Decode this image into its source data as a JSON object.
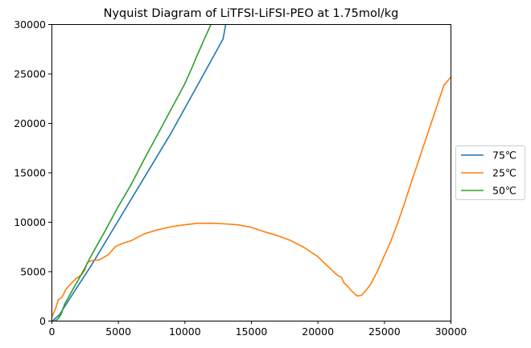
{
  "chart_data": {
    "type": "line",
    "title": "Nyquist Diagram of LiTFSI-LiFSI-PEO at 1.75mol/kg",
    "xlabel": "",
    "ylabel": "",
    "xlim": [
      0,
      30000
    ],
    "ylim": [
      0,
      30000
    ],
    "x_ticks": [
      0,
      5000,
      10000,
      15000,
      20000,
      25000,
      30000
    ],
    "y_ticks": [
      0,
      5000,
      10000,
      15000,
      20000,
      25000,
      30000
    ],
    "grid": false,
    "legend_position": "right, outside plot area",
    "series": [
      {
        "name": "75℃",
        "color": "#1f77b4",
        "points": [
          [
            100,
            0
          ],
          [
            600,
            600
          ],
          [
            1500,
            2500
          ],
          [
            3000,
            5600
          ],
          [
            6000,
            12300
          ],
          [
            9000,
            19000
          ],
          [
            12000,
            26300
          ],
          [
            12900,
            28500
          ],
          [
            13100,
            30000
          ]
        ]
      },
      {
        "name": "25℃",
        "color": "#ff7f0e",
        "points": [
          [
            0,
            300
          ],
          [
            300,
            1200
          ],
          [
            500,
            2100
          ],
          [
            800,
            2400
          ],
          [
            1100,
            3200
          ],
          [
            1500,
            3800
          ],
          [
            1800,
            4200
          ],
          [
            2300,
            4700
          ],
          [
            2500,
            5100
          ],
          [
            2700,
            5900
          ],
          [
            3100,
            6100
          ],
          [
            3600,
            6150
          ],
          [
            4300,
            6700
          ],
          [
            4800,
            7500
          ],
          [
            5300,
            7800
          ],
          [
            6000,
            8100
          ],
          [
            7000,
            8800
          ],
          [
            8000,
            9200
          ],
          [
            9000,
            9500
          ],
          [
            10000,
            9700
          ],
          [
            11000,
            9850
          ],
          [
            12000,
            9850
          ],
          [
            13000,
            9800
          ],
          [
            14000,
            9700
          ],
          [
            15000,
            9450
          ],
          [
            16000,
            9000
          ],
          [
            17000,
            8600
          ],
          [
            18000,
            8100
          ],
          [
            19000,
            7400
          ],
          [
            20000,
            6500
          ],
          [
            20700,
            5600
          ],
          [
            21400,
            4700
          ],
          [
            21600,
            4500
          ],
          [
            21800,
            4400
          ],
          [
            22000,
            3800
          ],
          [
            22200,
            3600
          ],
          [
            22500,
            3100
          ],
          [
            22800,
            2700
          ],
          [
            23000,
            2500
          ],
          [
            23300,
            2550
          ],
          [
            23600,
            3000
          ],
          [
            24000,
            3700
          ],
          [
            24500,
            5000
          ],
          [
            25000,
            6500
          ],
          [
            25500,
            8000
          ],
          [
            26000,
            9800
          ],
          [
            26500,
            11700
          ],
          [
            27000,
            13800
          ],
          [
            27500,
            15800
          ],
          [
            28000,
            17800
          ],
          [
            28500,
            19800
          ],
          [
            29000,
            21800
          ],
          [
            29500,
            23800
          ],
          [
            30000,
            24600
          ]
        ]
      },
      {
        "name": "50℃",
        "color": "#2ca02c",
        "points": [
          [
            300,
            0
          ],
          [
            500,
            200
          ],
          [
            700,
            600
          ],
          [
            1000,
            1700
          ],
          [
            1500,
            2900
          ],
          [
            2000,
            4100
          ],
          [
            2500,
            5300
          ],
          [
            3000,
            6600
          ],
          [
            4000,
            9000
          ],
          [
            5000,
            11500
          ],
          [
            6000,
            13800
          ],
          [
            7000,
            16400
          ],
          [
            8000,
            18900
          ],
          [
            9000,
            21400
          ],
          [
            10000,
            23900
          ],
          [
            10500,
            25400
          ],
          [
            11000,
            27000
          ],
          [
            11500,
            28500
          ],
          [
            12000,
            30000
          ]
        ]
      }
    ]
  }
}
